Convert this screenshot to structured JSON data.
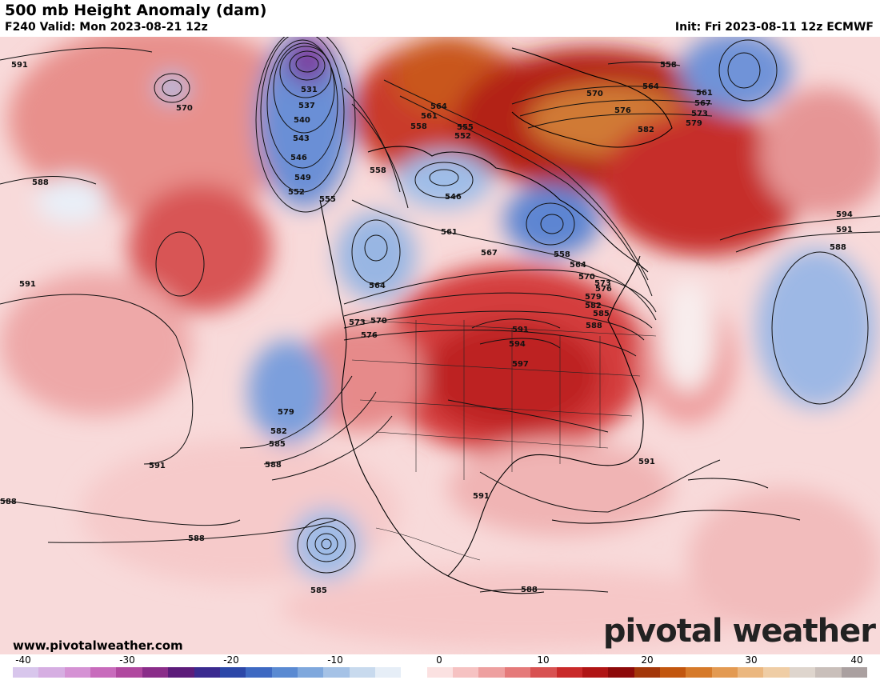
{
  "header": {
    "title": "500 mb Height Anomaly (dam)",
    "valid": "F240 Valid: Mon 2023-08-21 12z",
    "init": "Init: Fri 2023-08-11 12z ECMWF"
  },
  "footer": {
    "website": "www.pivotalweather.com",
    "logo": "pivotal weather"
  },
  "colorbar": {
    "ticks": [
      "-40",
      "-30",
      "-20",
      "-10",
      "0",
      "10",
      "20",
      "30",
      "40"
    ],
    "colors": [
      "#d8c6ec",
      "#d6aee2",
      "#d592d4",
      "#c86bbc",
      "#b0489f",
      "#8a2d89",
      "#5c1c7a",
      "#3a2a8f",
      "#2c47a8",
      "#3e69c2",
      "#5a8ad2",
      "#7fa8dd",
      "#a5c2e6",
      "#c8daee",
      "#e6eef7",
      "#ffffff",
      "#fbe1e1",
      "#f6c2c2",
      "#eea0a0",
      "#e57a7a",
      "#d85252",
      "#c92a2a",
      "#b01515",
      "#8d0a0a",
      "#a3370a",
      "#c2560e",
      "#d67a2a",
      "#e39a52",
      "#ebb77f",
      "#efcda5",
      "#ded5cd",
      "#c9bfba",
      "#aaa0a0"
    ]
  },
  "map": {
    "contour_labels": [
      {
        "text": "591"
      },
      {
        "text": "570"
      },
      {
        "text": "531"
      },
      {
        "text": "537"
      },
      {
        "text": "540"
      },
      {
        "text": "543"
      },
      {
        "text": "546"
      },
      {
        "text": "549"
      },
      {
        "text": "552"
      },
      {
        "text": "555"
      },
      {
        "text": "588"
      },
      {
        "text": "591"
      },
      {
        "text": "564"
      },
      {
        "text": "573"
      },
      {
        "text": "570"
      },
      {
        "text": "576"
      },
      {
        "text": "579"
      },
      {
        "text": "582"
      },
      {
        "text": "585"
      },
      {
        "text": "588"
      },
      {
        "text": "591"
      },
      {
        "text": "588"
      },
      {
        "text": "588"
      },
      {
        "text": "585"
      },
      {
        "text": "558"
      },
      {
        "text": "561"
      },
      {
        "text": "558"
      },
      {
        "text": "555"
      },
      {
        "text": "552"
      },
      {
        "text": "546"
      },
      {
        "text": "564"
      },
      {
        "text": "561"
      },
      {
        "text": "567"
      },
      {
        "text": "558"
      },
      {
        "text": "564"
      },
      {
        "text": "570"
      },
      {
        "text": "573"
      },
      {
        "text": "576"
      },
      {
        "text": "579"
      },
      {
        "text": "582"
      },
      {
        "text": "585"
      },
      {
        "text": "588"
      },
      {
        "text": "591"
      },
      {
        "text": "594"
      },
      {
        "text": "597"
      },
      {
        "text": "591"
      },
      {
        "text": "588"
      },
      {
        "text": "558"
      },
      {
        "text": "564"
      },
      {
        "text": "561"
      },
      {
        "text": "567"
      },
      {
        "text": "573"
      },
      {
        "text": "579"
      },
      {
        "text": "570"
      },
      {
        "text": "576"
      },
      {
        "text": "582"
      },
      {
        "text": "594"
      },
      {
        "text": "591"
      },
      {
        "text": "588"
      },
      {
        "text": "591"
      }
    ]
  }
}
